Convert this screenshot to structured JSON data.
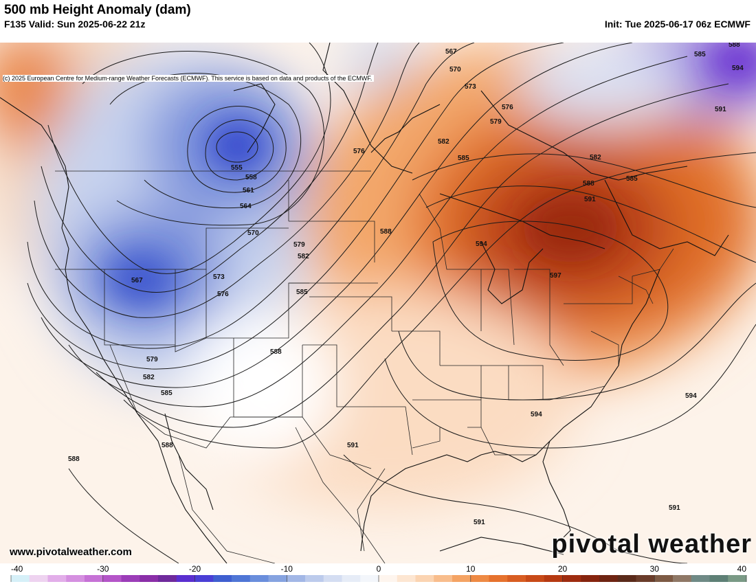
{
  "header": {
    "title": "500 mb Height Anomaly (dam)",
    "valid": "F135 Valid: Sun 2025-06-22 21z",
    "init": "Init: Tue 2025-06-17 06z ECMWF",
    "credit": "(c) 2025 European Centre for Medium-range Weather Forecasts (ECMWF). This service is based on data and products of the ECMWF."
  },
  "map": {
    "contour_labels": [
      "555",
      "558",
      "561",
      "564",
      "567",
      "567",
      "570",
      "570",
      "573",
      "573",
      "576",
      "576",
      "576",
      "579",
      "579",
      "579",
      "582",
      "582",
      "582",
      "582",
      "585",
      "585",
      "585",
      "585",
      "585",
      "588",
      "588",
      "588",
      "588",
      "588",
      "588",
      "591",
      "591",
      "591",
      "591",
      "591",
      "594",
      "594",
      "594",
      "594",
      "597"
    ],
    "colors": {
      "negative_strong": "#5a2fd0",
      "negative": "#3f5fd0",
      "negative_light": "#a9bde8",
      "neutral": "#ffffff",
      "positive_light": "#fbd9bd",
      "positive": "#e8762a",
      "positive_strong": "#b0320f"
    }
  },
  "footer": {
    "website": "www.pivotalweather.com",
    "logo": "pivotal weather"
  },
  "colorbar": {
    "tick_labels": [
      "-40",
      "-30",
      "-20",
      "-10",
      "0",
      "10",
      "20",
      "30",
      "40"
    ],
    "min": -40,
    "max": 40,
    "step": 2,
    "colors": [
      "#d6f0f8",
      "#eed3f0",
      "#e2aee9",
      "#d590e0",
      "#c672d6",
      "#b455c8",
      "#9b3db8",
      "#8a2fa8",
      "#6f2a9c",
      "#5a2fd0",
      "#4a3fd6",
      "#3f5fd0",
      "#4f76d6",
      "#6a8edc",
      "#86a3e0",
      "#a2b7e6",
      "#bccbec",
      "#d4ddf2",
      "#e6ecf7",
      "#f3f6fb",
      "#fef5ee",
      "#fde6d2",
      "#fbd4b2",
      "#f8bd8c",
      "#f4a364",
      "#ee8a44",
      "#e6722e",
      "#d85d22",
      "#c84a18",
      "#b63a12",
      "#9e2c10",
      "#86240e",
      "#6e2412",
      "#5a2a1a",
      "#6a3c2a",
      "#7d5a44",
      "#8f7866",
      "#6f8a86",
      "#5e8076",
      "#7a9a86"
    ]
  }
}
